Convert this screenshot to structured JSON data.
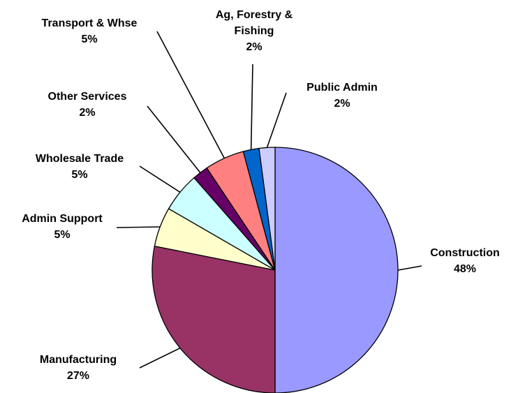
{
  "chart_data": {
    "type": "pie",
    "title": "",
    "start_angle_deg": 0,
    "direction": "clockwise",
    "slices": [
      {
        "name": "Construction",
        "name_lines": [
          "Construction"
        ],
        "value": 48,
        "label": "48%",
        "color": "#9999ff"
      },
      {
        "name": "Manufacturing",
        "name_lines": [
          "Manufacturing"
        ],
        "value": 27,
        "label": "27%",
        "color": "#993366"
      },
      {
        "name": "Admin Support",
        "name_lines": [
          "Admin Support"
        ],
        "value": 5,
        "label": "5%",
        "color": "#ffffcc"
      },
      {
        "name": "Wholesale Trade",
        "name_lines": [
          "Wholesale Trade"
        ],
        "value": 5,
        "label": "5%",
        "color": "#ccffff"
      },
      {
        "name": "Other Services",
        "name_lines": [
          "Other Services"
        ],
        "value": 2,
        "label": "2%",
        "color": "#660066"
      },
      {
        "name": "Transport & Whse",
        "name_lines": [
          "Transport & Whse"
        ],
        "value": 5,
        "label": "5%",
        "color": "#ff8080"
      },
      {
        "name": "Ag, Forestry & Fishing",
        "name_lines": [
          "Ag, Forestry &",
          "Fishing"
        ],
        "value": 2,
        "label": "2%",
        "color": "#0066cc"
      },
      {
        "name": "Public Admin",
        "name_lines": [
          "Public Admin"
        ],
        "value": 2,
        "label": "2%",
        "color": "#ccccff"
      }
    ]
  }
}
